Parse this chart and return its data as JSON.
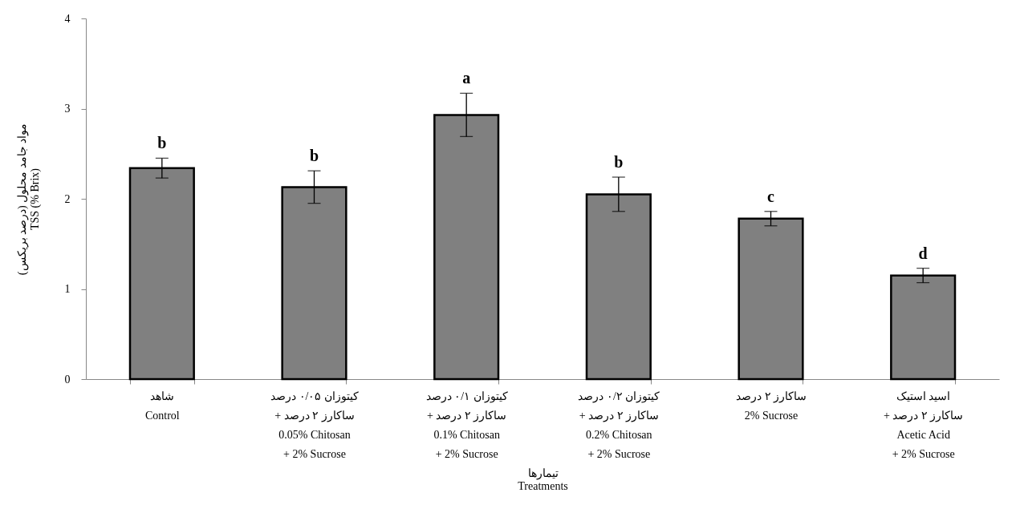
{
  "chart_data": {
    "type": "bar",
    "categories": [
      "شاهد\nControl",
      "کیتوزان ۰/۰۵ درصد\n+ ساکارز ۲ درصد\n0.05% Chitosan\n+ 2% Sucrose",
      "کیتوزان ۰/۱ درصد\n+ ساکارز ۲ درصد\n0.1% Chitosan\n+ 2% Sucrose",
      "کیتوزان ۰/۲ درصد\n+ ساکارز ۲ درصد\n0.2% Chitosan\n+ 2% Sucrose",
      "ساکارز ۲ درصد\n2% Sucrose",
      "اسید استیک\n+ ساکارز ۲ درصد\nAcetic Acid\n+ 2% Sucrose"
    ],
    "values": [
      2.34,
      2.13,
      2.93,
      2.05,
      1.78,
      1.15
    ],
    "errors": [
      0.11,
      0.18,
      0.24,
      0.19,
      0.08,
      0.08
    ],
    "color": "#808080",
    "xlabel": "تیمارها\nTreatments",
    "ylabel": "مواد جامد محلول (درصد بریکس)\nTSS (% Brix)",
    "ylim": [
      0,
      4
    ],
    "yticks": [
      0,
      1,
      2,
      3,
      4
    ],
    "grid": false,
    "annotations": [
      "b",
      "b",
      "a",
      "b",
      "c",
      "d"
    ]
  }
}
